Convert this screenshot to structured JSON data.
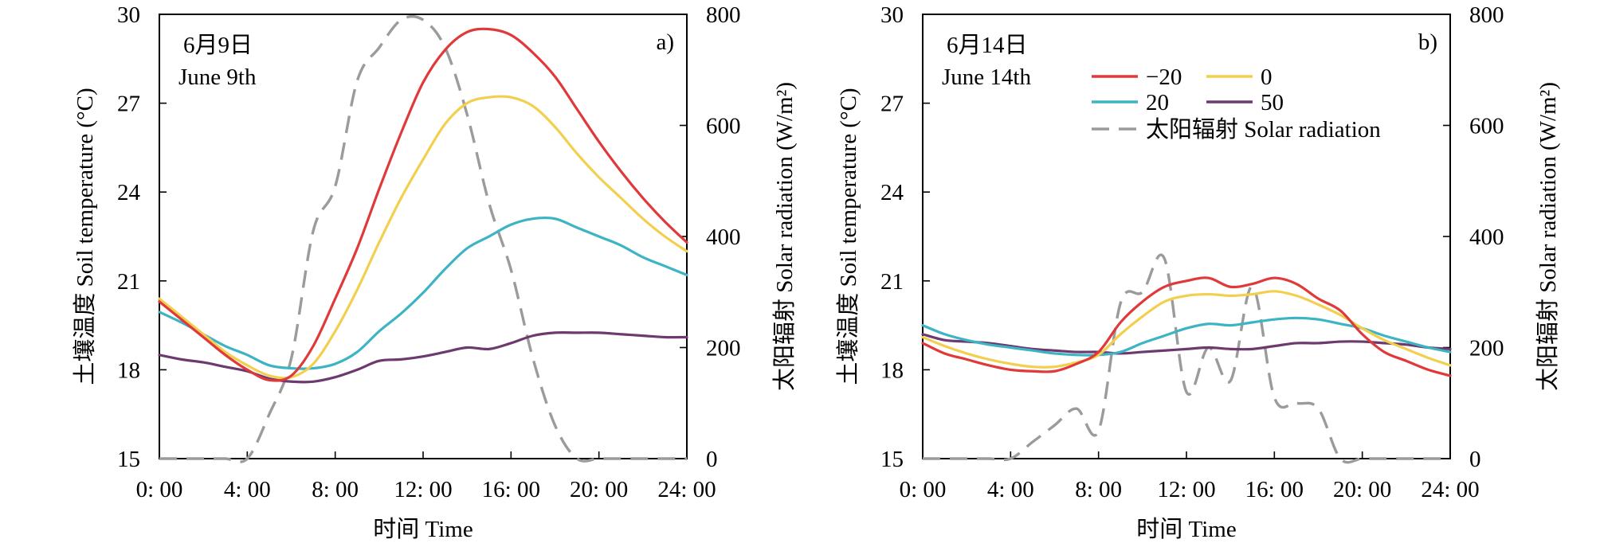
{
  "figure": {
    "x_tick_labels": [
      "0: 00",
      "4: 00",
      "8: 00",
      "12: 00",
      "16: 00",
      "20: 00",
      "24: 00"
    ],
    "y_left_tick_labels": [
      "15",
      "18",
      "21",
      "24",
      "27",
      "30"
    ],
    "y_right_tick_labels": [
      "0",
      "200",
      "400",
      "600",
      "800"
    ]
  },
  "colors": {
    "-20": "#e0393a",
    "0": "#f2cf4f",
    "20": "#3cb4c4",
    "50": "#6c3a6e",
    "solar": "#9b9b9b"
  },
  "legend": {
    "items": [
      {
        "key": "-20",
        "label": "−20"
      },
      {
        "key": "0",
        "label": "0"
      },
      {
        "key": "20",
        "label": "20"
      },
      {
        "key": "50",
        "label": "50"
      },
      {
        "key": "solar",
        "label": "太阳辐射 Solar radiation"
      }
    ]
  },
  "chart_data": [
    {
      "type": "line",
      "panel_label": "a)",
      "date_cn": "6月9日",
      "date_en": "June 9th",
      "xlabel": "时间 Time",
      "ylabel": "土壤温度 Soil temperature (°C)",
      "ylabel_right": "太阳辐射 Solar radiation (W/m²)",
      "xlim": [
        0,
        24
      ],
      "ylim": [
        15,
        30
      ],
      "ylim_right": [
        0,
        800
      ],
      "x": [
        0,
        1,
        2,
        3,
        4,
        5,
        6,
        7,
        8,
        9,
        10,
        11,
        12,
        13,
        14,
        15,
        16,
        17,
        18,
        19,
        20,
        21,
        22,
        23,
        24
      ],
      "series": [
        {
          "name": "−20",
          "key": "-20",
          "axis": "left",
          "values": [
            20.3,
            19.7,
            19.1,
            18.5,
            18.0,
            17.65,
            17.8,
            18.8,
            20.4,
            22.1,
            24.1,
            26.0,
            27.7,
            28.8,
            29.4,
            29.5,
            29.3,
            28.7,
            27.9,
            26.8,
            25.7,
            24.7,
            23.8,
            23.0,
            22.3
          ]
        },
        {
          "name": "0",
          "key": "0",
          "axis": "left",
          "values": [
            20.4,
            19.8,
            19.2,
            18.6,
            18.15,
            17.8,
            17.75,
            18.2,
            19.3,
            20.7,
            22.3,
            23.8,
            25.1,
            26.3,
            27.0,
            27.2,
            27.2,
            26.9,
            26.2,
            25.3,
            24.5,
            23.8,
            23.1,
            22.5,
            22.0
          ]
        },
        {
          "name": "20",
          "key": "20",
          "axis": "left",
          "values": [
            19.95,
            19.6,
            19.2,
            18.8,
            18.5,
            18.15,
            18.05,
            18.05,
            18.2,
            18.6,
            19.3,
            19.9,
            20.6,
            21.4,
            22.1,
            22.5,
            22.9,
            23.1,
            23.1,
            22.8,
            22.5,
            22.2,
            21.8,
            21.5,
            21.2
          ]
        },
        {
          "name": "50",
          "key": "50",
          "axis": "left",
          "values": [
            18.5,
            18.35,
            18.25,
            18.1,
            17.95,
            17.7,
            17.6,
            17.6,
            17.75,
            18.0,
            18.3,
            18.35,
            18.45,
            18.6,
            18.75,
            18.7,
            18.9,
            19.15,
            19.25,
            19.25,
            19.25,
            19.2,
            19.15,
            19.1,
            19.1
          ]
        },
        {
          "name": "太阳辐射 Solar radiation",
          "key": "solar",
          "axis": "right",
          "dashed": true,
          "values": [
            0,
            0,
            0,
            0,
            0,
            80,
            180,
            410,
            490,
            680,
            740,
            790,
            790,
            740,
            620,
            460,
            340,
            180,
            60,
            0,
            0,
            0,
            0,
            0,
            0
          ]
        }
      ]
    },
    {
      "type": "line",
      "panel_label": "b)",
      "date_cn": "6月14日",
      "date_en": "June 14th",
      "xlabel": "时间 Time",
      "ylabel": "土壤温度 Soil temperature (°C)",
      "ylabel_right": "太阳辐射 Solar radiation (W/m²)",
      "xlim": [
        0,
        24
      ],
      "ylim": [
        15,
        30
      ],
      "ylim_right": [
        0,
        800
      ],
      "legend_position": "top-right",
      "x": [
        0,
        1,
        2,
        3,
        4,
        5,
        6,
        7,
        8,
        9,
        10,
        11,
        12,
        13,
        14,
        15,
        16,
        17,
        18,
        19,
        20,
        21,
        22,
        23,
        24
      ],
      "series": [
        {
          "name": "−20",
          "key": "-20",
          "axis": "left",
          "values": [
            18.9,
            18.55,
            18.35,
            18.15,
            18.0,
            17.95,
            17.95,
            18.2,
            18.6,
            19.6,
            20.3,
            20.8,
            21.0,
            21.1,
            20.8,
            20.9,
            21.1,
            20.9,
            20.4,
            20.0,
            19.2,
            18.6,
            18.3,
            18.0,
            17.8
          ]
        },
        {
          "name": "0",
          "key": "0",
          "axis": "left",
          "values": [
            19.1,
            18.8,
            18.55,
            18.35,
            18.2,
            18.1,
            18.1,
            18.25,
            18.5,
            19.2,
            19.8,
            20.3,
            20.5,
            20.55,
            20.5,
            20.55,
            20.65,
            20.5,
            20.2,
            19.85,
            19.4,
            19.0,
            18.7,
            18.4,
            18.15
          ]
        },
        {
          "name": "20",
          "key": "20",
          "axis": "left",
          "values": [
            19.5,
            19.2,
            19.0,
            18.85,
            18.75,
            18.65,
            18.55,
            18.5,
            18.5,
            18.6,
            18.9,
            19.15,
            19.4,
            19.55,
            19.5,
            19.6,
            19.7,
            19.75,
            19.7,
            19.55,
            19.4,
            19.15,
            18.95,
            18.75,
            18.6
          ]
        },
        {
          "name": "50",
          "key": "50",
          "axis": "left",
          "values": [
            19.2,
            19.0,
            18.95,
            18.9,
            18.8,
            18.7,
            18.65,
            18.6,
            18.6,
            18.55,
            18.6,
            18.65,
            18.7,
            18.75,
            18.7,
            18.7,
            18.8,
            18.9,
            18.9,
            18.95,
            18.95,
            18.9,
            18.85,
            18.75,
            18.7
          ]
        },
        {
          "name": "太阳辐射 Solar radiation",
          "key": "solar",
          "axis": "right",
          "dashed": true,
          "values": [
            0,
            0,
            0,
            0,
            0,
            30,
            60,
            90,
            50,
            280,
            300,
            360,
            120,
            200,
            140,
            310,
            110,
            100,
            90,
            0,
            0,
            0,
            0,
            0,
            0
          ]
        }
      ]
    }
  ]
}
